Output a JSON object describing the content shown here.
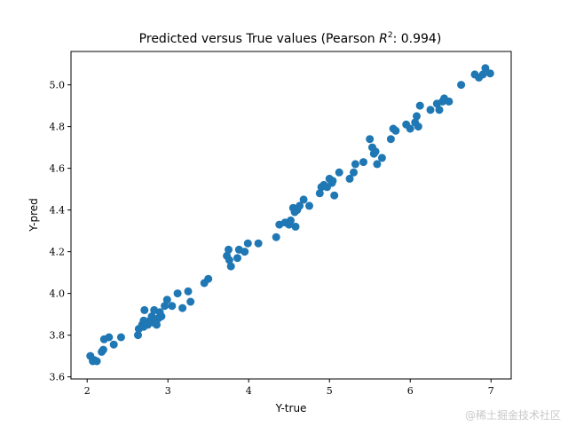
{
  "chart_data": {
    "type": "scatter",
    "title_prefix": "Predicted versus True values (Pearson ",
    "title_math_base": "R",
    "title_math_sup": "2",
    "title_suffix": ": 0.994)",
    "xlabel": "Y-true",
    "ylabel": "Y-pred",
    "xlim": [
      1.8,
      7.25
    ],
    "ylim": [
      3.59,
      5.16
    ],
    "xticks": [
      2,
      3,
      4,
      5,
      6,
      7
    ],
    "yticks": [
      3.6,
      3.8,
      4.0,
      4.2,
      4.4,
      4.6,
      4.8,
      5.0
    ],
    "ytick_labels": [
      "3.6",
      "3.8",
      "4.0",
      "4.2",
      "4.4",
      "4.6",
      "4.8",
      "5.0"
    ],
    "grid": false,
    "marker_color": "#1f77b4",
    "points": [
      [
        2.04,
        3.7
      ],
      [
        2.07,
        3.675
      ],
      [
        2.09,
        3.68
      ],
      [
        2.12,
        3.675
      ],
      [
        2.18,
        3.72
      ],
      [
        2.2,
        3.73
      ],
      [
        2.21,
        3.78
      ],
      [
        2.27,
        3.79
      ],
      [
        2.33,
        3.755
      ],
      [
        2.42,
        3.79
      ],
      [
        2.63,
        3.8
      ],
      [
        2.64,
        3.83
      ],
      [
        2.68,
        3.85
      ],
      [
        2.7,
        3.84
      ],
      [
        2.7,
        3.87
      ],
      [
        2.71,
        3.92
      ],
      [
        2.72,
        3.86
      ],
      [
        2.75,
        3.85
      ],
      [
        2.78,
        3.87
      ],
      [
        2.8,
        3.89
      ],
      [
        2.82,
        3.86
      ],
      [
        2.83,
        3.92
      ],
      [
        2.86,
        3.85
      ],
      [
        2.88,
        3.88
      ],
      [
        2.9,
        3.91
      ],
      [
        2.92,
        3.89
      ],
      [
        2.96,
        3.94
      ],
      [
        2.99,
        3.97
      ],
      [
        3.05,
        3.94
      ],
      [
        3.12,
        4.0
      ],
      [
        3.18,
        3.93
      ],
      [
        3.25,
        4.01
      ],
      [
        3.28,
        3.96
      ],
      [
        3.45,
        4.05
      ],
      [
        3.5,
        4.07
      ],
      [
        3.73,
        4.18
      ],
      [
        3.75,
        4.21
      ],
      [
        3.76,
        4.16
      ],
      [
        3.78,
        4.13
      ],
      [
        3.86,
        4.17
      ],
      [
        3.88,
        4.21
      ],
      [
        3.95,
        4.2
      ],
      [
        3.99,
        4.24
      ],
      [
        4.12,
        4.24
      ],
      [
        4.34,
        4.27
      ],
      [
        4.38,
        4.33
      ],
      [
        4.45,
        4.34
      ],
      [
        4.5,
        4.33
      ],
      [
        4.52,
        4.35
      ],
      [
        4.55,
        4.41
      ],
      [
        4.57,
        4.39
      ],
      [
        4.58,
        4.32
      ],
      [
        4.6,
        4.4
      ],
      [
        4.63,
        4.42
      ],
      [
        4.68,
        4.45
      ],
      [
        4.75,
        4.42
      ],
      [
        4.88,
        4.48
      ],
      [
        4.9,
        4.51
      ],
      [
        4.93,
        4.52
      ],
      [
        4.97,
        4.51
      ],
      [
        5.0,
        4.55
      ],
      [
        5.03,
        4.53
      ],
      [
        5.04,
        4.54
      ],
      [
        5.06,
        4.47
      ],
      [
        5.12,
        4.58
      ],
      [
        5.25,
        4.55
      ],
      [
        5.3,
        4.58
      ],
      [
        5.32,
        4.62
      ],
      [
        5.42,
        4.63
      ],
      [
        5.5,
        4.74
      ],
      [
        5.53,
        4.7
      ],
      [
        5.55,
        4.67
      ],
      [
        5.57,
        4.68
      ],
      [
        5.59,
        4.62
      ],
      [
        5.65,
        4.65
      ],
      [
        5.76,
        4.74
      ],
      [
        5.79,
        4.79
      ],
      [
        5.82,
        4.78
      ],
      [
        5.95,
        4.81
      ],
      [
        6.0,
        4.79
      ],
      [
        6.06,
        4.82
      ],
      [
        6.08,
        4.85
      ],
      [
        6.1,
        4.8
      ],
      [
        6.12,
        4.9
      ],
      [
        6.25,
        4.88
      ],
      [
        6.33,
        4.91
      ],
      [
        6.36,
        4.88
      ],
      [
        6.4,
        4.92
      ],
      [
        6.42,
        4.935
      ],
      [
        6.48,
        4.92
      ],
      [
        6.63,
        5.0
      ],
      [
        6.8,
        5.05
      ],
      [
        6.85,
        5.035
      ],
      [
        6.9,
        5.05
      ],
      [
        6.93,
        5.08
      ],
      [
        6.99,
        5.055
      ]
    ]
  },
  "watermark": "@稀土掘金技术社区"
}
